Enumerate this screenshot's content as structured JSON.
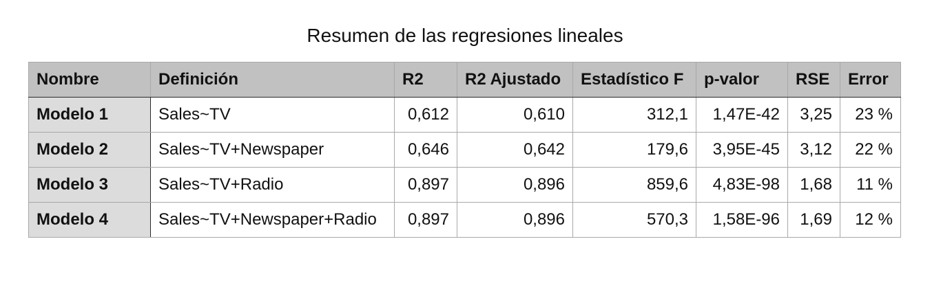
{
  "title": "Resumen de las regresiones lineales",
  "table": {
    "headers": [
      "Nombre",
      "Definición",
      "R2",
      "R2 Ajustado",
      "Estadístico F",
      "p-valor",
      "RSE",
      "Error"
    ],
    "rows": [
      [
        "Modelo 1",
        "Sales~TV",
        "0,612",
        "0,610",
        "312,1",
        "1,47E-42",
        "3,25",
        "23 %"
      ],
      [
        "Modelo 2",
        "Sales~TV+Newspaper",
        "0,646",
        "0,642",
        "179,6",
        "3,95E-45",
        "3,12",
        "22 %"
      ],
      [
        "Modelo 3",
        "Sales~TV+Radio",
        "0,897",
        "0,896",
        "859,6",
        "4,83E-98",
        "1,68",
        "11 %"
      ],
      [
        "Modelo 4",
        "Sales~TV+Newspaper+Radio",
        "0,897",
        "0,896",
        "570,3",
        "1,58E-96",
        "1,69",
        "12 %"
      ]
    ]
  },
  "colors": {
    "header_background": "#c0c1c0",
    "row_header_background": "#dcdcdc",
    "grid_line": "#a8a8a8"
  }
}
